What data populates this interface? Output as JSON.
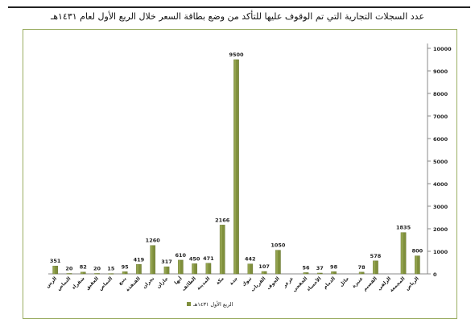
{
  "title": "عدد السجلات التجارية التي تم الوقوف عليها للتأكد من وضع بطاقة السعر خلال الربع الأول لعام ١٤٣١هـ",
  "chart_data": {
    "type": "bar",
    "categories": [
      "الرس",
      "النماص",
      "شقراء",
      "العقيق",
      "النماص",
      "ينبع",
      "القنفذة",
      "نجران",
      "جازان",
      "أبها",
      "الطائف",
      "المدينة",
      "مكة",
      "جدة",
      "تبوك",
      "القريات",
      "الجوف",
      "عرعر",
      "الخفجي",
      "الأحساء",
      "الدمام",
      "حائل",
      "عنيزة",
      "القصيم",
      "الزلفي",
      "المجمعة",
      "الرياض"
    ],
    "series": [
      {
        "name": "الربع الأول ١٤٣١هـ",
        "values": [
          351,
          20,
          82,
          20,
          15,
          95,
          419,
          1260,
          317,
          610,
          450,
          471,
          2166,
          9500,
          442,
          107,
          1050,
          null,
          56,
          37,
          98,
          null,
          78,
          578,
          null,
          1835,
          800
        ]
      }
    ],
    "ylim": [
      0,
      10000
    ],
    "yticks": [
      0,
      1000,
      2000,
      3000,
      4000,
      5000,
      6000,
      7000,
      8000,
      9000,
      10000
    ],
    "grid": false,
    "legend_position": "bottom-left",
    "colors": {
      "bar_fill": "#7f8f3c",
      "bar_top": "#a3b35c",
      "frame": "#9aad62",
      "axis": "#888888"
    }
  }
}
